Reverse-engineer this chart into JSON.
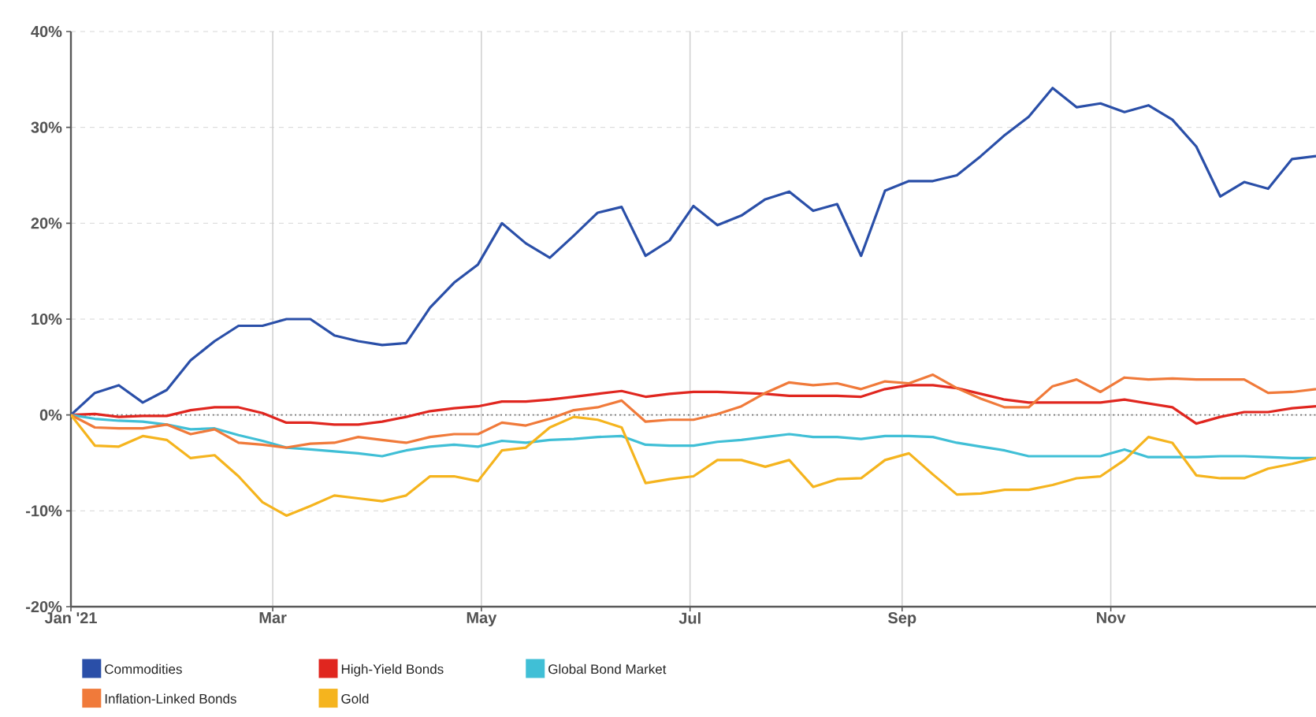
{
  "chart_data": {
    "type": "line",
    "x": [
      "2021-01-01",
      "2021-01-08",
      "2021-01-15",
      "2021-01-22",
      "2021-01-29",
      "2021-02-05",
      "2021-02-12",
      "2021-02-19",
      "2021-02-26",
      "2021-03-05",
      "2021-03-12",
      "2021-03-19",
      "2021-03-26",
      "2021-04-02",
      "2021-04-09",
      "2021-04-16",
      "2021-04-23",
      "2021-04-30",
      "2021-05-07",
      "2021-05-14",
      "2021-05-21",
      "2021-05-28",
      "2021-06-04",
      "2021-06-11",
      "2021-06-18",
      "2021-06-25",
      "2021-07-02",
      "2021-07-09",
      "2021-07-16",
      "2021-07-23",
      "2021-07-30",
      "2021-08-06",
      "2021-08-13",
      "2021-08-20",
      "2021-08-27",
      "2021-09-03",
      "2021-09-10",
      "2021-09-17",
      "2021-09-24",
      "2021-10-01",
      "2021-10-08",
      "2021-10-15",
      "2021-10-22",
      "2021-10-29",
      "2021-11-05",
      "2021-11-12",
      "2021-11-19",
      "2021-11-26",
      "2021-12-03",
      "2021-12-10",
      "2021-12-17",
      "2021-12-24",
      "2021-12-31"
    ],
    "series": [
      {
        "name": "Commodities",
        "color": "#2a4fa8",
        "values": [
          0,
          2.3,
          3.1,
          1.3,
          2.6,
          5.7,
          7.7,
          9.3,
          9.3,
          10,
          10,
          8.3,
          7.7,
          7.3,
          7.5,
          11.2,
          13.8,
          15.7,
          20,
          17.9,
          16.4,
          18.7,
          21.1,
          21.7,
          16.6,
          18.2,
          21.8,
          19.8,
          20.8,
          22.5,
          23.3,
          21.3,
          22,
          16.6,
          23.4,
          24.4,
          24.4,
          25,
          27,
          29.2,
          31.1,
          34.1,
          32.1,
          32.5,
          31.6,
          32.3,
          30.8,
          28,
          22.8,
          24.3,
          23.6,
          26.7,
          27
        ]
      },
      {
        "name": "High-Yield Bonds",
        "color": "#e0261f",
        "values": [
          0,
          0.1,
          -0.2,
          -0.1,
          -0.1,
          0.5,
          0.8,
          0.8,
          0.2,
          -0.8,
          -0.8,
          -1,
          -1,
          -0.7,
          -0.2,
          0.4,
          0.7,
          0.9,
          1.4,
          1.4,
          1.6,
          1.9,
          2.2,
          2.5,
          1.9,
          2.2,
          2.4,
          2.4,
          2.3,
          2.2,
          2,
          2,
          2,
          1.9,
          2.7,
          3.1,
          3.1,
          2.8,
          2.2,
          1.6,
          1.3,
          1.3,
          1.3,
          1.3,
          1.6,
          1.2,
          0.8,
          -0.9,
          -0.2,
          0.3,
          0.3,
          0.7,
          0.9
        ]
      },
      {
        "name": "Global Bond Market",
        "color": "#40bfd6",
        "values": [
          0,
          -0.4,
          -0.6,
          -0.7,
          -1,
          -1.5,
          -1.4,
          -2.1,
          -2.7,
          -3.4,
          -3.6,
          -3.8,
          -4,
          -4.3,
          -3.7,
          -3.3,
          -3.1,
          -3.3,
          -2.7,
          -2.9,
          -2.6,
          -2.5,
          -2.3,
          -2.2,
          -3.1,
          -3.2,
          -3.2,
          -2.8,
          -2.6,
          -2.3,
          -2,
          -2.3,
          -2.3,
          -2.5,
          -2.2,
          -2.2,
          -2.3,
          -2.9,
          -3.3,
          -3.7,
          -4.3,
          -4.3,
          -4.3,
          -4.3,
          -3.6,
          -4.4,
          -4.4,
          -4.4,
          -4.3,
          -4.3,
          -4.4,
          -4.5,
          -4.5
        ]
      },
      {
        "name": "Inflation-Linked Bonds",
        "color": "#f07a3a",
        "values": [
          0,
          -1.3,
          -1.4,
          -1.4,
          -1,
          -2,
          -1.5,
          -2.9,
          -3.1,
          -3.4,
          -3,
          -2.9,
          -2.3,
          -2.6,
          -2.9,
          -2.3,
          -2,
          -2,
          -0.8,
          -1.1,
          -0.4,
          0.5,
          0.8,
          1.5,
          -0.7,
          -0.5,
          -0.5,
          0.1,
          0.9,
          2.3,
          3.4,
          3.1,
          3.3,
          2.7,
          3.5,
          3.3,
          4.2,
          2.8,
          1.7,
          0.8,
          0.8,
          3,
          3.7,
          2.4,
          3.9,
          3.7,
          3.8,
          3.7,
          3.7,
          3.7,
          2.3,
          2.4,
          2.7
        ]
      },
      {
        "name": "Gold",
        "color": "#f5b41e",
        "values": [
          0,
          -3.2,
          -3.3,
          -2.2,
          -2.6,
          -4.5,
          -4.2,
          -6.4,
          -9.1,
          -10.5,
          -9.5,
          -8.4,
          -8.7,
          -9,
          -8.4,
          -6.4,
          -6.4,
          -6.9,
          -3.7,
          -3.4,
          -1.3,
          -0.2,
          -0.5,
          -1.3,
          -7.1,
          -6.7,
          -6.4,
          -4.7,
          -4.7,
          -5.4,
          -4.7,
          -7.5,
          -6.7,
          -6.6,
          -4.7,
          -4,
          -6.2,
          -8.3,
          -8.2,
          -7.8,
          -7.8,
          -7.3,
          -6.6,
          -6.4,
          -4.7,
          -2.3,
          -2.9,
          -6.3,
          -6.6,
          -6.6,
          -5.6,
          -5.1,
          -4.5
        ]
      }
    ],
    "xlim": [
      "2021-01-01",
      "2021-12-31"
    ],
    "xticks": [
      {
        "value": "2021-01-01",
        "label": "Jan '21"
      },
      {
        "value": "2021-03-01",
        "label": "Mar"
      },
      {
        "value": "2021-05-01",
        "label": "May"
      },
      {
        "value": "2021-07-01",
        "label": "Jul"
      },
      {
        "value": "2021-09-01",
        "label": "Sep"
      },
      {
        "value": "2021-11-01",
        "label": "Nov"
      }
    ],
    "ylim": [
      -20,
      40
    ],
    "yticks": [
      {
        "value": -20,
        "label": "-20%"
      },
      {
        "value": -10,
        "label": "-10%"
      },
      {
        "value": 0,
        "label": "0%"
      },
      {
        "value": 10,
        "label": "10%"
      },
      {
        "value": 20,
        "label": "20%"
      },
      {
        "value": 30,
        "label": "30%"
      },
      {
        "value": 40,
        "label": "40%"
      }
    ],
    "ref_lines": [
      {
        "axis": "y",
        "value": 0,
        "color": "#666666",
        "line_style": "dotted"
      }
    ],
    "grid": true,
    "legend": "bottom",
    "marker": "none",
    "line_style": "solid"
  }
}
